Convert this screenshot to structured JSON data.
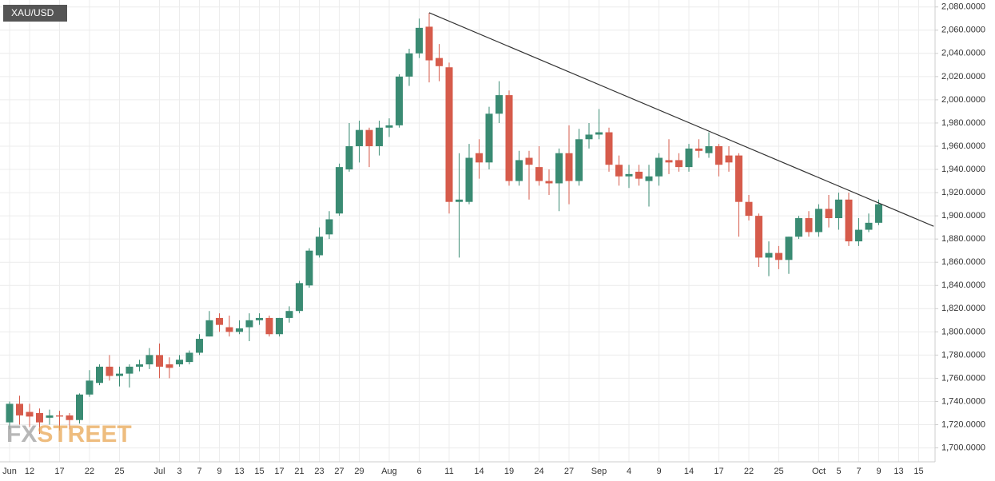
{
  "chart_data": {
    "type": "candlestick",
    "title": "XAU/USD",
    "watermark": [
      "FX",
      "STREET"
    ],
    "categories": [
      "Jun",
      null,
      "12",
      null,
      null,
      "17",
      null,
      null,
      "22",
      null,
      null,
      "25",
      null,
      null,
      null,
      "Jul",
      null,
      "3",
      null,
      "7",
      null,
      "9",
      null,
      "13",
      null,
      "15",
      null,
      "17",
      null,
      "21",
      null,
      "23",
      null,
      "27",
      null,
      "29",
      null,
      null,
      "Aug",
      null,
      null,
      "6",
      null,
      null,
      "11",
      null,
      null,
      "14",
      null,
      null,
      "19",
      null,
      null,
      "24",
      null,
      null,
      "27",
      null,
      null,
      "Sep",
      null,
      null,
      "4",
      null,
      null,
      "9",
      null,
      null,
      "14",
      null,
      null,
      "17",
      null,
      null,
      "22",
      null,
      null,
      "25",
      null,
      null,
      null,
      "Oct",
      null,
      "5",
      null,
      "7",
      null,
      "9",
      null,
      "13",
      null,
      "15"
    ],
    "open": [
      1722,
      1738,
      1731,
      1730,
      1726,
      1728,
      1728,
      1724,
      1746,
      1756,
      1770,
      1762,
      1764,
      1770,
      1772,
      1780,
      1772,
      1772,
      1774,
      1782,
      1796,
      1812,
      1804,
      1800,
      1804,
      1810,
      1812,
      1798,
      1812,
      1818,
      1840,
      1866,
      1884,
      1902,
      1940,
      1960,
      1974,
      1960,
      1976,
      1978,
      2020,
      2040,
      2063,
      2036,
      2028,
      1912,
      1912,
      1954,
      1946,
      1988,
      2004,
      1930,
      1950,
      1942,
      1930,
      1928,
      1954,
      1930,
      1966,
      1970,
      1972,
      1944,
      1934,
      1938,
      1930,
      1934,
      1948,
      1948,
      1942,
      1958,
      1954,
      1960,
      1952,
      1952,
      1912,
      1900,
      1864,
      1868,
      1862,
      1882,
      1898,
      1886,
      1906,
      1898,
      1914,
      1878,
      1888,
      1894,
      null,
      null,
      null,
      null
    ],
    "high": [
      1740,
      1745,
      1738,
      1734,
      1733,
      1732,
      1730,
      1747,
      1767,
      1772,
      1780,
      1770,
      1772,
      1776,
      1786,
      1790,
      1778,
      1780,
      1784,
      1798,
      1818,
      1816,
      1814,
      1810,
      1816,
      1816,
      1814,
      1812,
      1822,
      1844,
      1872,
      1890,
      1904,
      1945,
      1980,
      1982,
      1976,
      1982,
      1984,
      2022,
      2044,
      2070,
      2075,
      2048,
      2032,
      1954,
      1962,
      1966,
      1994,
      2016,
      2008,
      1956,
      1956,
      1960,
      1940,
      1958,
      1978,
      1975,
      1980,
      1992,
      1976,
      1952,
      1944,
      1944,
      1944,
      1954,
      1966,
      1954,
      1962,
      1966,
      1972,
      1962,
      1960,
      1954,
      1918,
      1902,
      1878,
      1874,
      1882,
      1900,
      1904,
      1910,
      1918,
      1920,
      1920,
      1898,
      1902,
      1914,
      null,
      null,
      null,
      null
    ],
    "low": [
      1716,
      1720,
      1718,
      1712,
      1720,
      1715,
      1716,
      1721,
      1744,
      1754,
      1758,
      1753,
      1752,
      1766,
      1768,
      1760,
      1760,
      1770,
      1772,
      1780,
      1796,
      1800,
      1796,
      1798,
      1792,
      1806,
      1796,
      1796,
      1808,
      1816,
      1838,
      1864,
      1880,
      1900,
      1938,
      1946,
      1942,
      1952,
      1968,
      1976,
      2012,
      2036,
      2015,
      2016,
      1902,
      1864,
      1910,
      1932,
      1940,
      1980,
      1926,
      1926,
      1914,
      1926,
      1918,
      1904,
      1910,
      1926,
      1958,
      1966,
      1938,
      1926,
      1924,
      1926,
      1908,
      1926,
      1936,
      1938,
      1938,
      1950,
      1950,
      1934,
      1938,
      1882,
      1896,
      1856,
      1848,
      1854,
      1850,
      1880,
      1882,
      1882,
      1890,
      1888,
      1874,
      1874,
      1886,
      1892,
      null,
      null,
      null,
      null
    ],
    "close": [
      1738,
      1728,
      1727,
      1722,
      1728,
      1727,
      1724,
      1746,
      1758,
      1770,
      1762,
      1764,
      1770,
      1772,
      1780,
      1770,
      1769,
      1776,
      1782,
      1794,
      1810,
      1806,
      1800,
      1803,
      1810,
      1812,
      1798,
      1812,
      1818,
      1842,
      1870,
      1882,
      1897,
      1942,
      1960,
      1974,
      1960,
      1976,
      1978,
      2020,
      2040,
      2062,
      2034,
      2029,
      1912,
      1914,
      1950,
      1946,
      1988,
      2004,
      1930,
      1948,
      1944,
      1930,
      1928,
      1954,
      1930,
      1966,
      1970,
      1972,
      1944,
      1934,
      1936,
      1932,
      1934,
      1950,
      1946,
      1942,
      1958,
      1956,
      1960,
      1944,
      1946,
      1912,
      1900,
      1864,
      1868,
      1862,
      1882,
      1898,
      1886,
      1906,
      1898,
      1914,
      1878,
      1888,
      1894,
      1910,
      null,
      null,
      null,
      null
    ],
    "up_color": "#3a8b73",
    "down_color": "#d65b4b",
    "trendline": {
      "x": [
        42,
        92.5
      ],
      "y": [
        2075,
        1891
      ],
      "color": "#333333"
    },
    "ylim": [
      1688,
      2086
    ],
    "yticks": [
      {
        "value": 1700,
        "label": "1,700.0000"
      },
      {
        "value": 1720,
        "label": "1,720.0000"
      },
      {
        "value": 1740,
        "label": "1,740.0000"
      },
      {
        "value": 1760,
        "label": "1,760.0000"
      },
      {
        "value": 1780,
        "label": "1,780.0000"
      },
      {
        "value": 1800,
        "label": "1,800.0000"
      },
      {
        "value": 1820,
        "label": "1,820.0000"
      },
      {
        "value": 1840,
        "label": "1,840.0000"
      },
      {
        "value": 1860,
        "label": "1,860.0000"
      },
      {
        "value": 1880,
        "label": "1,880.0000"
      },
      {
        "value": 1900,
        "label": "1,900.0000"
      },
      {
        "value": 1920,
        "label": "1,920.0000"
      },
      {
        "value": 1940,
        "label": "1,940.0000"
      },
      {
        "value": 1960,
        "label": "1,960.0000"
      },
      {
        "value": 1980,
        "label": "1,980.0000"
      },
      {
        "value": 2000,
        "label": "2,000.0000"
      },
      {
        "value": 2020,
        "label": "2,020.0000"
      },
      {
        "value": 2040,
        "label": "2,040.0000"
      },
      {
        "value": 2060,
        "label": "2,060.0000"
      },
      {
        "value": 2080,
        "label": "2,080.0000"
      }
    ],
    "grid": true
  }
}
